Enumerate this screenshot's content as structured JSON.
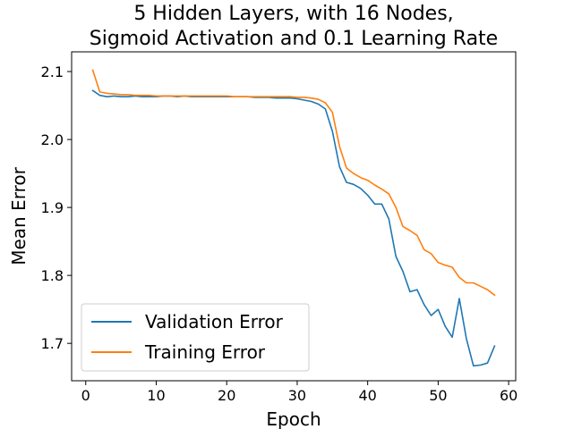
{
  "chart_data": {
    "type": "line",
    "title": [
      "5 Hidden Layers, with 16 Nodes,",
      "Sigmoid Activation and 0.1 Learning Rate"
    ],
    "xlabel": "Epoch",
    "ylabel": "Mean Error",
    "xlim": [
      -2.0,
      61.0
    ],
    "ylim": [
      1.645,
      2.129
    ],
    "xticks": [
      0,
      10,
      20,
      30,
      40,
      50,
      60
    ],
    "yticks": [
      1.7,
      1.8,
      1.9,
      2.0,
      2.1
    ],
    "ytick_labels": [
      "1.7",
      "1.8",
      "1.9",
      "2.0",
      "2.1"
    ],
    "grid": false,
    "legend": "lower-left",
    "x": [
      1,
      2,
      3,
      4,
      5,
      6,
      7,
      8,
      9,
      10,
      11,
      12,
      13,
      14,
      15,
      16,
      17,
      18,
      19,
      20,
      21,
      22,
      23,
      24,
      25,
      26,
      27,
      28,
      29,
      30,
      31,
      32,
      33,
      34,
      35,
      36,
      37,
      38,
      39,
      40,
      41,
      42,
      43,
      44,
      45,
      46,
      47,
      48,
      49,
      50,
      51,
      52,
      53,
      54,
      55,
      56,
      57,
      58
    ],
    "series": [
      {
        "name": "Validation Error",
        "color": "#1f77b4",
        "values": [
          2.072,
          2.065,
          2.063,
          2.064,
          2.063,
          2.063,
          2.064,
          2.063,
          2.063,
          2.063,
          2.064,
          2.064,
          2.063,
          2.064,
          2.063,
          2.063,
          2.063,
          2.063,
          2.063,
          2.063,
          2.063,
          2.063,
          2.063,
          2.062,
          2.062,
          2.062,
          2.061,
          2.061,
          2.061,
          2.06,
          2.058,
          2.056,
          2.052,
          2.045,
          2.012,
          1.96,
          1.937,
          1.934,
          1.928,
          1.918,
          1.905,
          1.905,
          1.883,
          1.828,
          1.806,
          1.776,
          1.779,
          1.757,
          1.741,
          1.75,
          1.725,
          1.709,
          1.766,
          1.707,
          1.667,
          1.668,
          1.671,
          1.696
        ]
      },
      {
        "name": "Training Error",
        "color": "#ff7f0e",
        "values": [
          2.102,
          2.07,
          2.068,
          2.067,
          2.066,
          2.066,
          2.065,
          2.065,
          2.065,
          2.064,
          2.064,
          2.064,
          2.064,
          2.064,
          2.064,
          2.064,
          2.064,
          2.064,
          2.064,
          2.064,
          2.063,
          2.063,
          2.063,
          2.063,
          2.063,
          2.063,
          2.063,
          2.063,
          2.063,
          2.062,
          2.062,
          2.061,
          2.059,
          2.054,
          2.04,
          1.99,
          1.958,
          1.95,
          1.944,
          1.94,
          1.933,
          1.927,
          1.92,
          1.9,
          1.872,
          1.866,
          1.859,
          1.838,
          1.832,
          1.819,
          1.815,
          1.812,
          1.797,
          1.789,
          1.789,
          1.784,
          1.779,
          1.771
        ]
      }
    ]
  }
}
